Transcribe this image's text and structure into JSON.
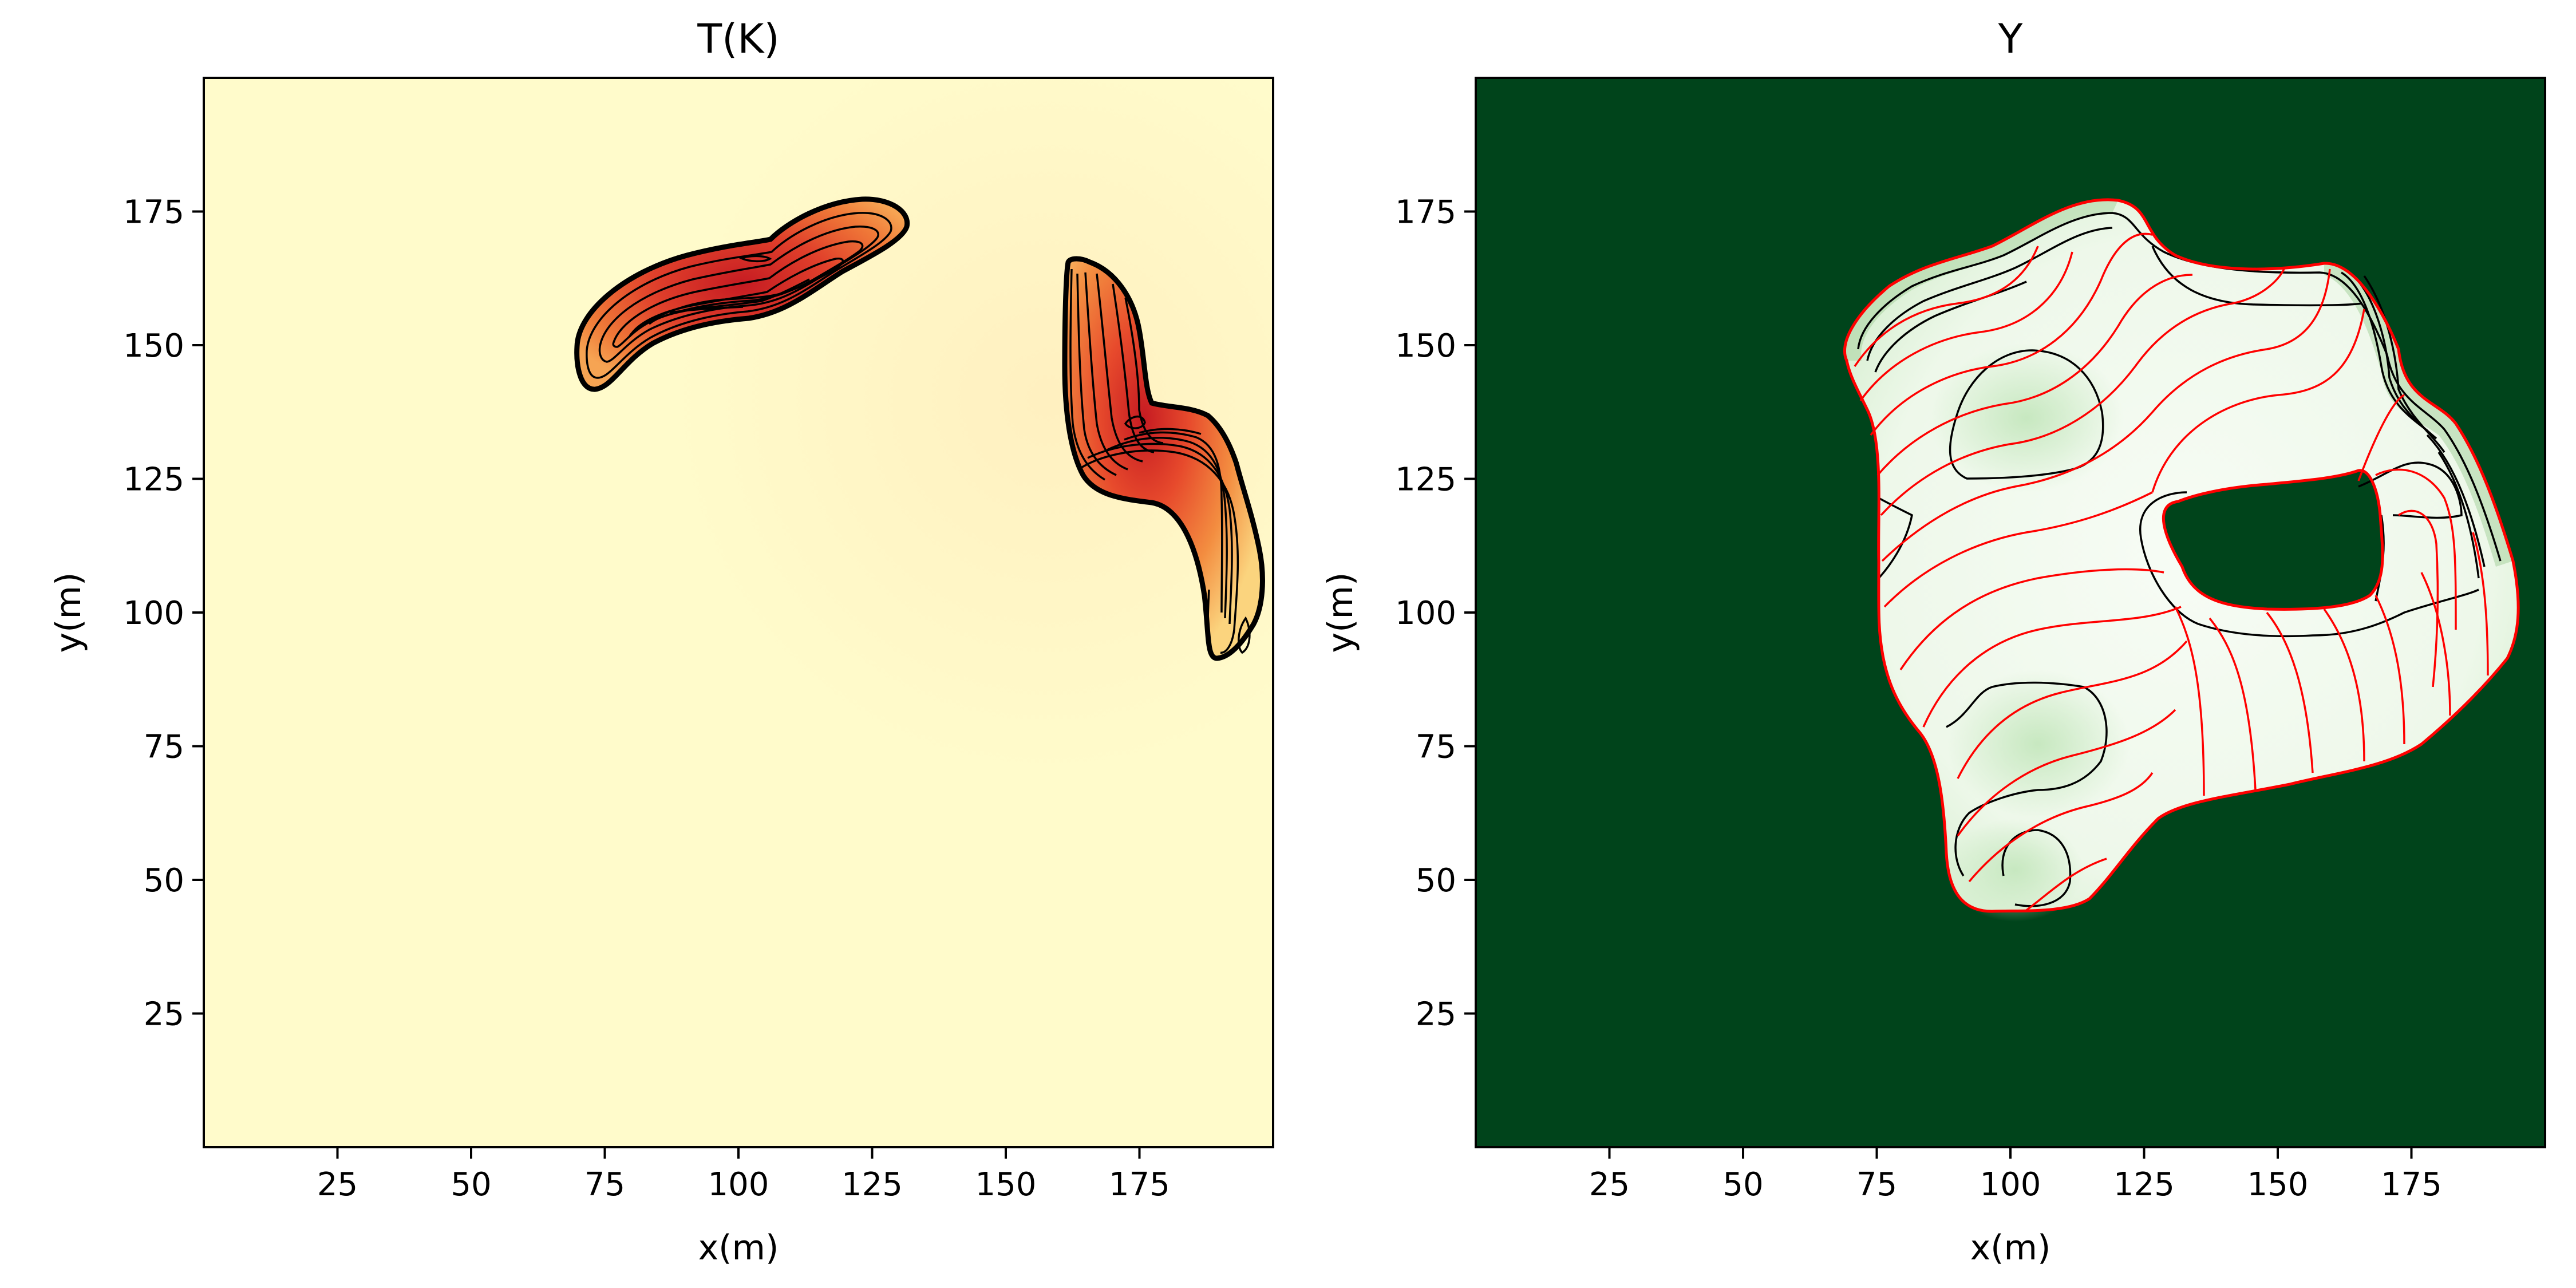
{
  "chart_data": [
    {
      "type": "heatmap",
      "title": "T(K)",
      "xlabel": "x(m)",
      "ylabel": "y(m)",
      "xlim": [
        0,
        200
      ],
      "ylim": [
        0,
        200
      ],
      "xticks": [
        25,
        50,
        75,
        100,
        125,
        150,
        175
      ],
      "yticks": [
        25,
        50,
        75,
        100,
        125,
        150,
        175
      ],
      "colormap": "YlOrRd",
      "colors": {
        "background": "#fffbcb",
        "low": "#f6a453",
        "mid": "#ef6a34",
        "high": "#d22a24",
        "peak": "#c61b22",
        "contour": "#000000"
      },
      "regions": [
        {
          "name": "upper-left burning band",
          "center": [
            100,
            160
          ],
          "extent_x": [
            68,
            133
          ],
          "extent_y": [
            142,
            178
          ],
          "peak": [
            103,
            167
          ]
        },
        {
          "name": "right burning band",
          "center": [
            178,
            125
          ],
          "extent_x": [
            159,
            199
          ],
          "extent_y": [
            88,
            166
          ],
          "peak": [
            174,
            136
          ]
        }
      ]
    },
    {
      "type": "heatmap",
      "title": "Y",
      "xlabel": "x(m)",
      "ylabel": "y(m)",
      "xlim": [
        0,
        200
      ],
      "ylim": [
        0,
        200
      ],
      "xticks": [
        25,
        50,
        75,
        100,
        125,
        150,
        175
      ],
      "yticks": [
        25,
        50,
        75,
        100,
        125,
        150,
        175
      ],
      "colormap": "Greens",
      "colors": {
        "background": "#00441b",
        "burned_region": "#f3faf0",
        "burned_edge": "#a9d4a1",
        "contour": "#000000",
        "front_contour": "#ff0000"
      },
      "burned_region": {
        "extent_x": [
          68,
          199
        ],
        "extent_y": [
          44,
          176
        ],
        "unburned_hole": {
          "extent_x": [
            131,
            168
          ],
          "extent_y": [
            97,
            127
          ]
        }
      }
    }
  ]
}
